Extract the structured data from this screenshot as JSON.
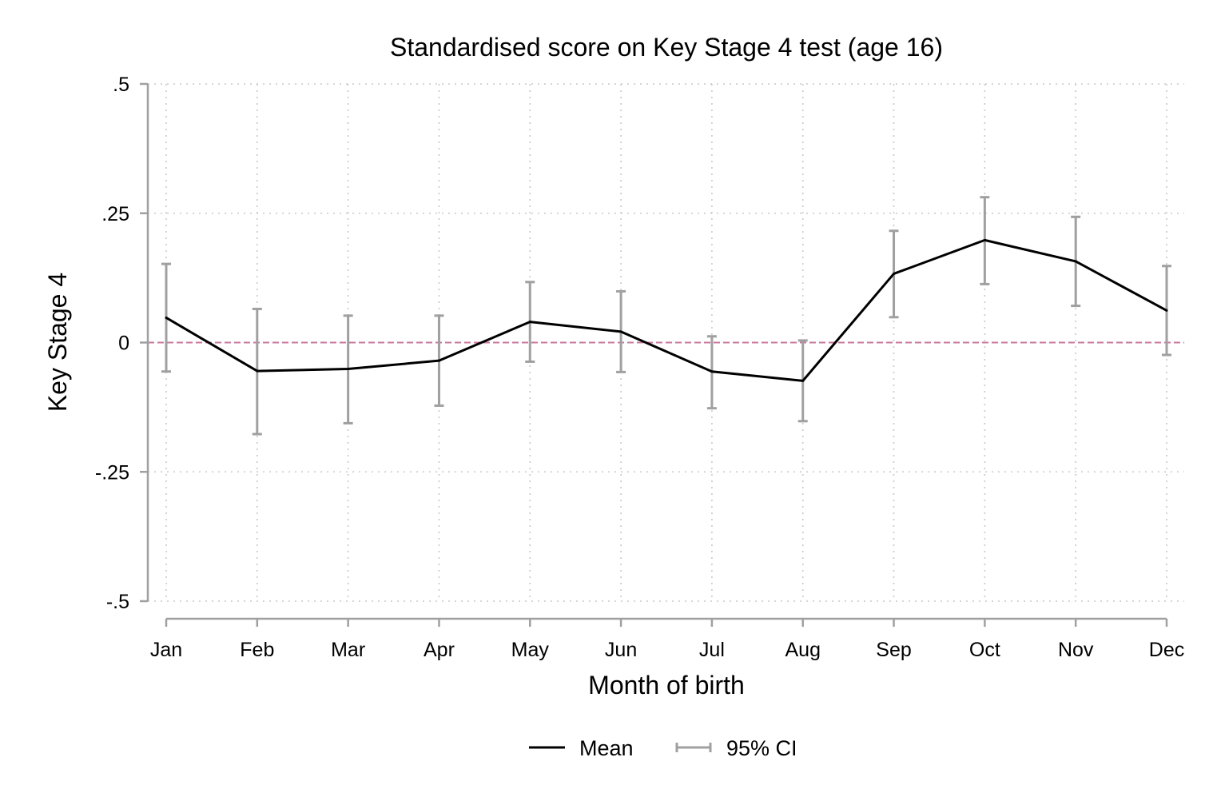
{
  "chart_data": {
    "type": "line",
    "title": "Standardised score on Key Stage 4 test (age 16)",
    "xlabel": "Month of birth",
    "ylabel": "Key Stage 4",
    "categories": [
      "Jan",
      "Feb",
      "Mar",
      "Apr",
      "May",
      "Jun",
      "Jul",
      "Aug",
      "Sep",
      "Oct",
      "Nov",
      "Dec"
    ],
    "ylim": [
      -0.5,
      0.5
    ],
    "yticks": [
      {
        "value": 0.5,
        "label": ".5"
      },
      {
        "value": 0.25,
        "label": ".25"
      },
      {
        "value": 0,
        "label": "0"
      },
      {
        "value": -0.25,
        "label": "-.25"
      },
      {
        "value": -0.5,
        "label": "-.5"
      }
    ],
    "series": [
      {
        "name": "Mean",
        "values": [
          0.048,
          -0.055,
          -0.051,
          -0.035,
          0.04,
          0.021,
          -0.056,
          -0.074,
          0.133,
          0.198,
          0.157,
          0.062
        ]
      }
    ],
    "ci": {
      "name": "95% CI",
      "lower": [
        -0.056,
        -0.177,
        -0.156,
        -0.122,
        -0.037,
        -0.057,
        -0.127,
        -0.152,
        0.049,
        0.113,
        0.071,
        -0.024
      ],
      "upper": [
        0.152,
        0.065,
        0.052,
        0.052,
        0.117,
        0.099,
        0.012,
        0.004,
        0.216,
        0.281,
        0.243,
        0.148
      ]
    },
    "reference_line": {
      "value": 0,
      "style": "dashed",
      "color": "#c9789e"
    },
    "grid": true,
    "legend_position": "bottom",
    "colors": {
      "mean": "#000000",
      "ci": "#a0a0a0",
      "grid": "#c8c8c8",
      "axis": "#a0a0a0"
    }
  }
}
